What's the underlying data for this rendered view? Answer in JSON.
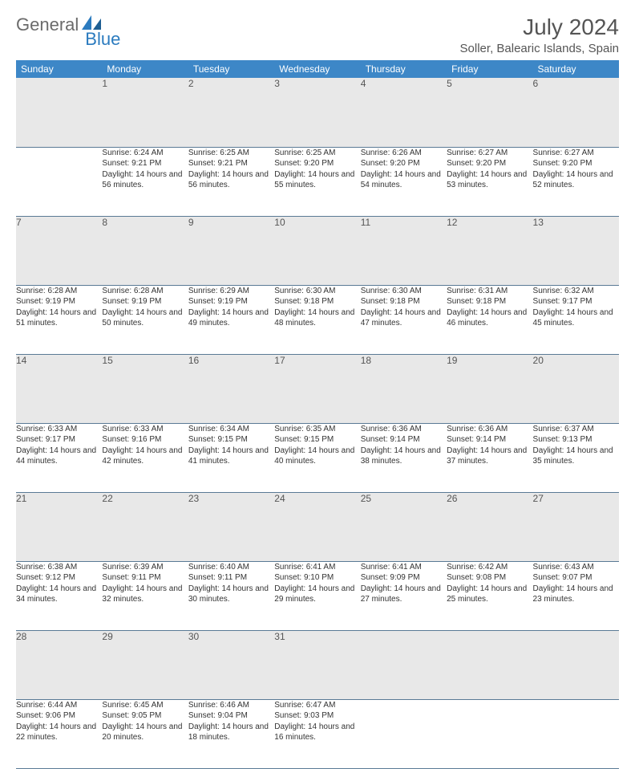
{
  "brand": {
    "part1": "General",
    "part2": "Blue"
  },
  "title": "July 2024",
  "location": "Soller, Balearic Islands, Spain",
  "weekdays": [
    "Sunday",
    "Monday",
    "Tuesday",
    "Wednesday",
    "Thursday",
    "Friday",
    "Saturday"
  ],
  "colors": {
    "header_bg": "#3d87c7",
    "header_fg": "#ffffff",
    "daynum_bg": "#e8e8e8",
    "rule": "#5a7a95",
    "text": "#333333",
    "muted": "#555555",
    "logo_gray": "#6b6b6b",
    "logo_blue": "#2b7bbf"
  },
  "weeks": [
    [
      {
        "n": "",
        "sr": "",
        "ss": "",
        "dl": ""
      },
      {
        "n": "1",
        "sr": "Sunrise: 6:24 AM",
        "ss": "Sunset: 9:21 PM",
        "dl": "Daylight: 14 hours and 56 minutes."
      },
      {
        "n": "2",
        "sr": "Sunrise: 6:25 AM",
        "ss": "Sunset: 9:21 PM",
        "dl": "Daylight: 14 hours and 56 minutes."
      },
      {
        "n": "3",
        "sr": "Sunrise: 6:25 AM",
        "ss": "Sunset: 9:20 PM",
        "dl": "Daylight: 14 hours and 55 minutes."
      },
      {
        "n": "4",
        "sr": "Sunrise: 6:26 AM",
        "ss": "Sunset: 9:20 PM",
        "dl": "Daylight: 14 hours and 54 minutes."
      },
      {
        "n": "5",
        "sr": "Sunrise: 6:27 AM",
        "ss": "Sunset: 9:20 PM",
        "dl": "Daylight: 14 hours and 53 minutes."
      },
      {
        "n": "6",
        "sr": "Sunrise: 6:27 AM",
        "ss": "Sunset: 9:20 PM",
        "dl": "Daylight: 14 hours and 52 minutes."
      }
    ],
    [
      {
        "n": "7",
        "sr": "Sunrise: 6:28 AM",
        "ss": "Sunset: 9:19 PM",
        "dl": "Daylight: 14 hours and 51 minutes."
      },
      {
        "n": "8",
        "sr": "Sunrise: 6:28 AM",
        "ss": "Sunset: 9:19 PM",
        "dl": "Daylight: 14 hours and 50 minutes."
      },
      {
        "n": "9",
        "sr": "Sunrise: 6:29 AM",
        "ss": "Sunset: 9:19 PM",
        "dl": "Daylight: 14 hours and 49 minutes."
      },
      {
        "n": "10",
        "sr": "Sunrise: 6:30 AM",
        "ss": "Sunset: 9:18 PM",
        "dl": "Daylight: 14 hours and 48 minutes."
      },
      {
        "n": "11",
        "sr": "Sunrise: 6:30 AM",
        "ss": "Sunset: 9:18 PM",
        "dl": "Daylight: 14 hours and 47 minutes."
      },
      {
        "n": "12",
        "sr": "Sunrise: 6:31 AM",
        "ss": "Sunset: 9:18 PM",
        "dl": "Daylight: 14 hours and 46 minutes."
      },
      {
        "n": "13",
        "sr": "Sunrise: 6:32 AM",
        "ss": "Sunset: 9:17 PM",
        "dl": "Daylight: 14 hours and 45 minutes."
      }
    ],
    [
      {
        "n": "14",
        "sr": "Sunrise: 6:33 AM",
        "ss": "Sunset: 9:17 PM",
        "dl": "Daylight: 14 hours and 44 minutes."
      },
      {
        "n": "15",
        "sr": "Sunrise: 6:33 AM",
        "ss": "Sunset: 9:16 PM",
        "dl": "Daylight: 14 hours and 42 minutes."
      },
      {
        "n": "16",
        "sr": "Sunrise: 6:34 AM",
        "ss": "Sunset: 9:15 PM",
        "dl": "Daylight: 14 hours and 41 minutes."
      },
      {
        "n": "17",
        "sr": "Sunrise: 6:35 AM",
        "ss": "Sunset: 9:15 PM",
        "dl": "Daylight: 14 hours and 40 minutes."
      },
      {
        "n": "18",
        "sr": "Sunrise: 6:36 AM",
        "ss": "Sunset: 9:14 PM",
        "dl": "Daylight: 14 hours and 38 minutes."
      },
      {
        "n": "19",
        "sr": "Sunrise: 6:36 AM",
        "ss": "Sunset: 9:14 PM",
        "dl": "Daylight: 14 hours and 37 minutes."
      },
      {
        "n": "20",
        "sr": "Sunrise: 6:37 AM",
        "ss": "Sunset: 9:13 PM",
        "dl": "Daylight: 14 hours and 35 minutes."
      }
    ],
    [
      {
        "n": "21",
        "sr": "Sunrise: 6:38 AM",
        "ss": "Sunset: 9:12 PM",
        "dl": "Daylight: 14 hours and 34 minutes."
      },
      {
        "n": "22",
        "sr": "Sunrise: 6:39 AM",
        "ss": "Sunset: 9:11 PM",
        "dl": "Daylight: 14 hours and 32 minutes."
      },
      {
        "n": "23",
        "sr": "Sunrise: 6:40 AM",
        "ss": "Sunset: 9:11 PM",
        "dl": "Daylight: 14 hours and 30 minutes."
      },
      {
        "n": "24",
        "sr": "Sunrise: 6:41 AM",
        "ss": "Sunset: 9:10 PM",
        "dl": "Daylight: 14 hours and 29 minutes."
      },
      {
        "n": "25",
        "sr": "Sunrise: 6:41 AM",
        "ss": "Sunset: 9:09 PM",
        "dl": "Daylight: 14 hours and 27 minutes."
      },
      {
        "n": "26",
        "sr": "Sunrise: 6:42 AM",
        "ss": "Sunset: 9:08 PM",
        "dl": "Daylight: 14 hours and 25 minutes."
      },
      {
        "n": "27",
        "sr": "Sunrise: 6:43 AM",
        "ss": "Sunset: 9:07 PM",
        "dl": "Daylight: 14 hours and 23 minutes."
      }
    ],
    [
      {
        "n": "28",
        "sr": "Sunrise: 6:44 AM",
        "ss": "Sunset: 9:06 PM",
        "dl": "Daylight: 14 hours and 22 minutes."
      },
      {
        "n": "29",
        "sr": "Sunrise: 6:45 AM",
        "ss": "Sunset: 9:05 PM",
        "dl": "Daylight: 14 hours and 20 minutes."
      },
      {
        "n": "30",
        "sr": "Sunrise: 6:46 AM",
        "ss": "Sunset: 9:04 PM",
        "dl": "Daylight: 14 hours and 18 minutes."
      },
      {
        "n": "31",
        "sr": "Sunrise: 6:47 AM",
        "ss": "Sunset: 9:03 PM",
        "dl": "Daylight: 14 hours and 16 minutes."
      },
      {
        "n": "",
        "sr": "",
        "ss": "",
        "dl": ""
      },
      {
        "n": "",
        "sr": "",
        "ss": "",
        "dl": ""
      },
      {
        "n": "",
        "sr": "",
        "ss": "",
        "dl": ""
      }
    ]
  ]
}
